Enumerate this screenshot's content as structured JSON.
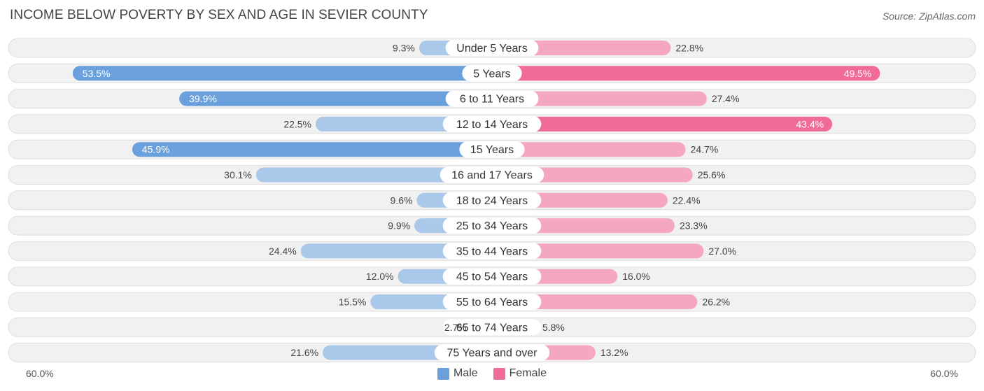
{
  "title": "INCOME BELOW POVERTY BY SEX AND AGE IN SEVIER COUNTY",
  "source": "Source: ZipAtlas.com",
  "axis": {
    "left_label": "60.0%",
    "right_label": "60.0%"
  },
  "legend": {
    "male_label": "Male",
    "female_label": "Female"
  },
  "colors": {
    "male_strong": "#6aa0dc",
    "male_light": "#a9c8ea",
    "female_strong": "#f06b97",
    "female_light": "#f5a6c1",
    "row_bg": "#f1f1f1",
    "row_border": "#dedede"
  },
  "chart_data": {
    "type": "bar",
    "orientation": "horizontal-diverging",
    "title": "INCOME BELOW POVERTY BY SEX AND AGE IN SEVIER COUNTY",
    "xlim": [
      -60,
      60
    ],
    "categories": [
      "Under 5 Years",
      "5 Years",
      "6 to 11 Years",
      "12 to 14 Years",
      "15 Years",
      "16 and 17 Years",
      "18 to 24 Years",
      "25 to 34 Years",
      "35 to 44 Years",
      "45 to 54 Years",
      "55 to 64 Years",
      "65 to 74 Years",
      "75 Years and over"
    ],
    "series": [
      {
        "name": "Male",
        "values": [
          9.3,
          53.5,
          39.9,
          22.5,
          45.9,
          30.1,
          9.6,
          9.9,
          24.4,
          12.0,
          15.5,
          2.7,
          21.6
        ]
      },
      {
        "name": "Female",
        "values": [
          22.8,
          49.5,
          27.4,
          43.4,
          24.7,
          25.6,
          22.4,
          23.3,
          27.0,
          16.0,
          26.2,
          5.8,
          13.2
        ]
      }
    ]
  }
}
